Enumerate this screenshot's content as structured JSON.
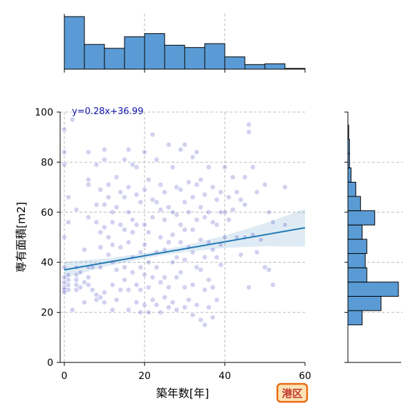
{
  "chart_data": {
    "type": "scatter",
    "xlabel": "築年数[年]",
    "ylabel": "専有面積[m2]",
    "xlim": [
      0,
      60
    ],
    "ylim": [
      0,
      100
    ],
    "xticks": [
      0,
      20,
      40,
      60
    ],
    "yticks": [
      0,
      20,
      40,
      60,
      80,
      100
    ],
    "grid": true,
    "regression": {
      "label": "y=0.28x+36.99",
      "slope": 0.28,
      "intercept": 36.99,
      "x_range": [
        0,
        60
      ]
    },
    "badge": "港区",
    "colors": {
      "point": "#0000aa",
      "regression": "#1f77b4",
      "histogram": "#5b9bd5",
      "badge_border": "#e86a10",
      "badge_fill": "#fde3b6"
    },
    "x_histogram": {
      "bin_edges": [
        0,
        5,
        10,
        15,
        20,
        25,
        30,
        35,
        40,
        45,
        50,
        55,
        60
      ],
      "counts": [
        68,
        32,
        27,
        42,
        46,
        31,
        28,
        33,
        16,
        6,
        7,
        1
      ]
    },
    "y_histogram": {
      "bin_edges": [
        15,
        20.7,
        26.4,
        32.1,
        37.8,
        43.5,
        49.2,
        54.9,
        60.6,
        66.3,
        72,
        77.7,
        83.4,
        89.1,
        94.8
      ],
      "counts": [
        9,
        21,
        32,
        12,
        11,
        12,
        9,
        17,
        8,
        5,
        2,
        1,
        1,
        0.5
      ]
    },
    "points": [
      [
        0,
        93
      ],
      [
        0,
        84
      ],
      [
        0,
        79
      ],
      [
        0,
        38
      ],
      [
        0,
        34
      ],
      [
        0,
        32
      ],
      [
        0,
        30
      ],
      [
        0,
        29
      ],
      [
        0,
        28
      ],
      [
        0,
        50
      ],
      [
        1,
        35
      ],
      [
        1,
        33
      ],
      [
        1,
        31
      ],
      [
        1,
        29
      ],
      [
        1,
        56
      ],
      [
        1,
        66
      ],
      [
        2,
        97
      ],
      [
        2,
        21
      ],
      [
        3,
        61
      ],
      [
        3,
        38
      ],
      [
        3,
        35
      ],
      [
        3,
        33
      ],
      [
        3,
        31
      ],
      [
        3,
        29
      ],
      [
        4,
        36
      ],
      [
        4,
        30
      ],
      [
        5,
        45
      ],
      [
        5,
        32
      ],
      [
        5,
        24
      ],
      [
        6,
        84
      ],
      [
        6,
        73
      ],
      [
        6,
        71
      ],
      [
        6,
        58
      ],
      [
        6,
        38
      ],
      [
        6,
        34
      ],
      [
        6,
        31
      ],
      [
        7,
        38
      ],
      [
        7,
        29
      ],
      [
        8,
        79
      ],
      [
        8,
        63
      ],
      [
        8,
        56
      ],
      [
        8,
        27
      ],
      [
        8,
        25
      ],
      [
        9,
        69
      ],
      [
        9,
        52
      ],
      [
        9,
        46
      ],
      [
        9,
        38
      ],
      [
        9,
        26
      ],
      [
        10,
        85
      ],
      [
        10,
        81
      ],
      [
        10,
        63
      ],
      [
        10,
        54
      ],
      [
        10,
        28
      ],
      [
        10,
        24
      ],
      [
        11,
        71
      ],
      [
        11,
        66
      ],
      [
        11,
        50
      ],
      [
        11,
        43
      ],
      [
        12,
        60
      ],
      [
        12,
        56
      ],
      [
        12,
        47
      ],
      [
        12,
        40
      ],
      [
        12,
        31
      ],
      [
        12,
        21
      ],
      [
        13,
        74
      ],
      [
        13,
        62
      ],
      [
        13,
        37
      ],
      [
        13,
        25
      ],
      [
        14,
        68
      ],
      [
        14,
        55
      ],
      [
        14,
        46
      ],
      [
        14,
        29
      ],
      [
        15,
        81
      ],
      [
        15,
        66
      ],
      [
        15,
        53
      ],
      [
        15,
        38
      ],
      [
        15,
        33
      ],
      [
        16,
        85
      ],
      [
        16,
        70
      ],
      [
        16,
        60
      ],
      [
        16,
        48
      ],
      [
        16,
        29
      ],
      [
        16,
        21
      ],
      [
        17,
        79
      ],
      [
        17,
        57
      ],
      [
        17,
        52
      ],
      [
        17,
        42
      ],
      [
        17,
        36
      ],
      [
        18,
        78
      ],
      [
        18,
        67
      ],
      [
        18,
        55
      ],
      [
        18,
        31
      ],
      [
        18,
        24
      ],
      [
        19,
        64
      ],
      [
        19,
        44
      ],
      [
        19,
        38
      ],
      [
        19,
        29
      ],
      [
        19,
        20
      ],
      [
        20,
        84
      ],
      [
        20,
        69
      ],
      [
        20,
        55
      ],
      [
        20,
        47
      ],
      [
        20,
        35
      ],
      [
        20,
        23
      ],
      [
        21,
        73
      ],
      [
        21,
        52
      ],
      [
        21,
        40
      ],
      [
        21,
        30
      ],
      [
        21,
        20
      ],
      [
        22,
        91
      ],
      [
        22,
        65
      ],
      [
        22,
        58
      ],
      [
        22,
        34
      ],
      [
        22,
        25
      ],
      [
        23,
        81
      ],
      [
        23,
        64
      ],
      [
        23,
        44
      ],
      [
        23,
        38
      ],
      [
        23,
        23
      ],
      [
        24,
        71
      ],
      [
        24,
        61
      ],
      [
        24,
        50
      ],
      [
        24,
        32
      ],
      [
        24,
        20
      ],
      [
        25,
        68
      ],
      [
        25,
        57
      ],
      [
        25,
        45
      ],
      [
        25,
        34
      ],
      [
        25,
        26
      ],
      [
        26,
        87
      ],
      [
        26,
        62
      ],
      [
        26,
        48
      ],
      [
        26,
        30
      ],
      [
        26,
        22
      ],
      [
        27,
        78
      ],
      [
        27,
        60
      ],
      [
        27,
        51
      ],
      [
        27,
        40
      ],
      [
        27,
        24
      ],
      [
        28,
        70
      ],
      [
        28,
        59
      ],
      [
        28,
        42
      ],
      [
        28,
        34
      ],
      [
        28,
        21
      ],
      [
        29,
        85
      ],
      [
        29,
        69
      ],
      [
        29,
        55
      ],
      [
        29,
        48
      ],
      [
        29,
        36
      ],
      [
        30,
        87
      ],
      [
        30,
        64
      ],
      [
        30,
        53
      ],
      [
        30,
        41
      ],
      [
        30,
        30
      ],
      [
        30,
        22
      ],
      [
        31,
        72
      ],
      [
        31,
        60
      ],
      [
        31,
        46
      ],
      [
        31,
        25
      ],
      [
        32,
        82
      ],
      [
        32,
        66
      ],
      [
        32,
        53
      ],
      [
        32,
        44
      ],
      [
        32,
        31
      ],
      [
        32,
        19
      ],
      [
        33,
        84
      ],
      [
        33,
        71
      ],
      [
        33,
        57
      ],
      [
        33,
        38
      ],
      [
        33,
        23
      ],
      [
        34,
        73
      ],
      [
        34,
        62
      ],
      [
        34,
        49
      ],
      [
        34,
        37
      ],
      [
        34,
        17
      ],
      [
        35,
        67
      ],
      [
        35,
        58
      ],
      [
        35,
        42
      ],
      [
        35,
        29
      ],
      [
        35,
        15
      ],
      [
        36,
        78
      ],
      [
        36,
        60
      ],
      [
        36,
        48
      ],
      [
        36,
        33
      ],
      [
        36,
        22
      ],
      [
        37,
        70
      ],
      [
        37,
        56
      ],
      [
        37,
        45
      ],
      [
        37,
        30
      ],
      [
        37,
        18
      ],
      [
        38,
        65
      ],
      [
        38,
        55
      ],
      [
        38,
        42
      ],
      [
        38,
        25
      ],
      [
        39,
        68
      ],
      [
        39,
        60
      ],
      [
        39,
        47
      ],
      [
        39,
        39
      ],
      [
        40,
        78
      ],
      [
        40,
        60
      ],
      [
        40,
        50
      ],
      [
        41,
        66
      ],
      [
        41,
        57
      ],
      [
        42,
        74
      ],
      [
        42,
        61
      ],
      [
        43,
        68
      ],
      [
        43,
        50
      ],
      [
        44,
        65
      ],
      [
        44,
        43
      ],
      [
        45,
        74
      ],
      [
        45,
        63
      ],
      [
        45,
        50
      ],
      [
        46,
        95
      ],
      [
        46,
        92
      ],
      [
        46,
        30
      ],
      [
        47,
        78
      ],
      [
        47,
        51
      ],
      [
        48,
        68
      ],
      [
        48,
        44
      ],
      [
        49,
        49
      ],
      [
        50,
        71
      ],
      [
        50,
        38
      ],
      [
        51,
        60
      ],
      [
        51,
        37
      ],
      [
        52,
        56
      ],
      [
        52,
        31
      ],
      [
        55,
        70
      ],
      [
        55,
        55
      ]
    ]
  }
}
